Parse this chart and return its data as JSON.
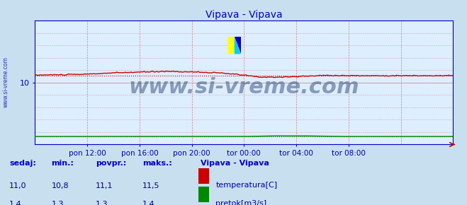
{
  "title": "Vipava - Vipava",
  "title_color": "#0000cc",
  "fig_bg_color": "#c8dff0",
  "plot_bg_color": "#ddeeff",
  "ylim": [
    0,
    20
  ],
  "yticks": [
    10
  ],
  "xlabel_ticks": [
    "pon 12:00",
    "pon 16:00",
    "pon 20:00",
    "tor 00:00",
    "tor 04:00",
    "tor 08:00"
  ],
  "tick_label_color": "#0000aa",
  "grid_color_v": "#cc8888",
  "grid_color_h": "#cc8888",
  "temp_color": "#cc0000",
  "flow_color": "#008800",
  "avg_temp": 11.1,
  "avg_flow": 1.3,
  "min_temp": 10.8,
  "max_temp": 11.5,
  "cur_temp": 11.0,
  "min_flow": 1.3,
  "max_flow": 1.4,
  "cur_flow": 1.4,
  "avg_flow_val": 1.3,
  "watermark": "www.si-vreme.com",
  "watermark_color": "#1a3a6a",
  "watermark_fontsize": 22,
  "legend_title": "Vipava - Vipava",
  "legend_title_color": "#0000cc",
  "legend_color": "#0000aa",
  "stat_label_color": "#0000cc",
  "stat_value_color": "#000088",
  "sidebar_text": "www.si-vreme.com",
  "sidebar_color": "#0000aa"
}
